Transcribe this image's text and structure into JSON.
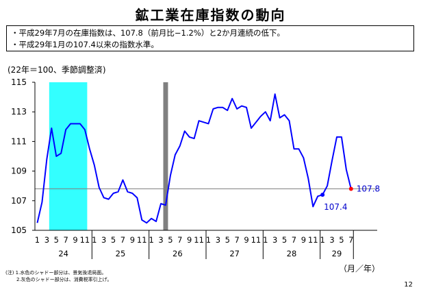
{
  "page": {
    "title": "鉱工業在庫指数の動向",
    "bullets": [
      "・平成29年7月の在庫指数は、107.8（前月比−1.2%）と2か月連続の低下。",
      "・平成29年1月の107.4以来の指数水準。"
    ],
    "unit_note": "(22年＝100、季節調整済)",
    "notes": [
      "(注) 1.水色のシャドー部分は、景気後退局面。",
      "2.灰色のシャドー部分は、消費税率引上げ。"
    ],
    "page_number": "12"
  },
  "chart_data": {
    "type": "line",
    "xlabel": "（月／年）",
    "ylim": [
      105,
      115
    ],
    "yticks": [
      105,
      107,
      109,
      111,
      113,
      115
    ],
    "year_labels": [
      "24",
      "25",
      "26",
      "27",
      "28",
      "29"
    ],
    "month_tick_labels": [
      "1",
      "3",
      "5",
      "7",
      "9",
      "11"
    ],
    "month_tick_labels_last_year": [
      "1",
      "3",
      "5",
      "7"
    ],
    "x_start": "2012-01",
    "values": [
      105.5,
      106.9,
      109.8,
      111.9,
      110.0,
      110.2,
      111.8,
      112.2,
      112.2,
      112.2,
      111.8,
      110.5,
      109.4,
      107.9,
      107.2,
      107.1,
      107.5,
      107.6,
      108.4,
      107.6,
      107.5,
      107.2,
      105.7,
      105.5,
      105.8,
      105.6,
      106.8,
      106.7,
      108.7,
      110.1,
      110.7,
      111.7,
      111.3,
      111.2,
      112.4,
      112.3,
      112.2,
      113.2,
      113.3,
      113.3,
      113.1,
      113.9,
      113.2,
      113.4,
      113.3,
      111.9,
      112.3,
      112.7,
      113.0,
      112.4,
      114.2,
      112.6,
      112.8,
      112.4,
      110.5,
      110.5,
      109.9,
      108.5,
      106.6,
      107.3,
      107.4,
      108.0,
      109.7,
      111.3,
      111.3,
      109.1,
      107.8
    ],
    "line_color": "#0000ff",
    "reference_line": 107.8,
    "recession_shade": {
      "from": "2012-04",
      "to": "2012-11",
      "color": "#33ffff"
    },
    "tax_shade": {
      "at": "2014-04",
      "color": "#808080"
    },
    "annotations": [
      {
        "label": "107.4",
        "x": "2017-01",
        "value": 107.4,
        "color": "#0000ff"
      },
      {
        "label": "107.8",
        "x": "2017-07",
        "value": 107.8,
        "color": "#ff0000"
      }
    ],
    "grid": false
  }
}
